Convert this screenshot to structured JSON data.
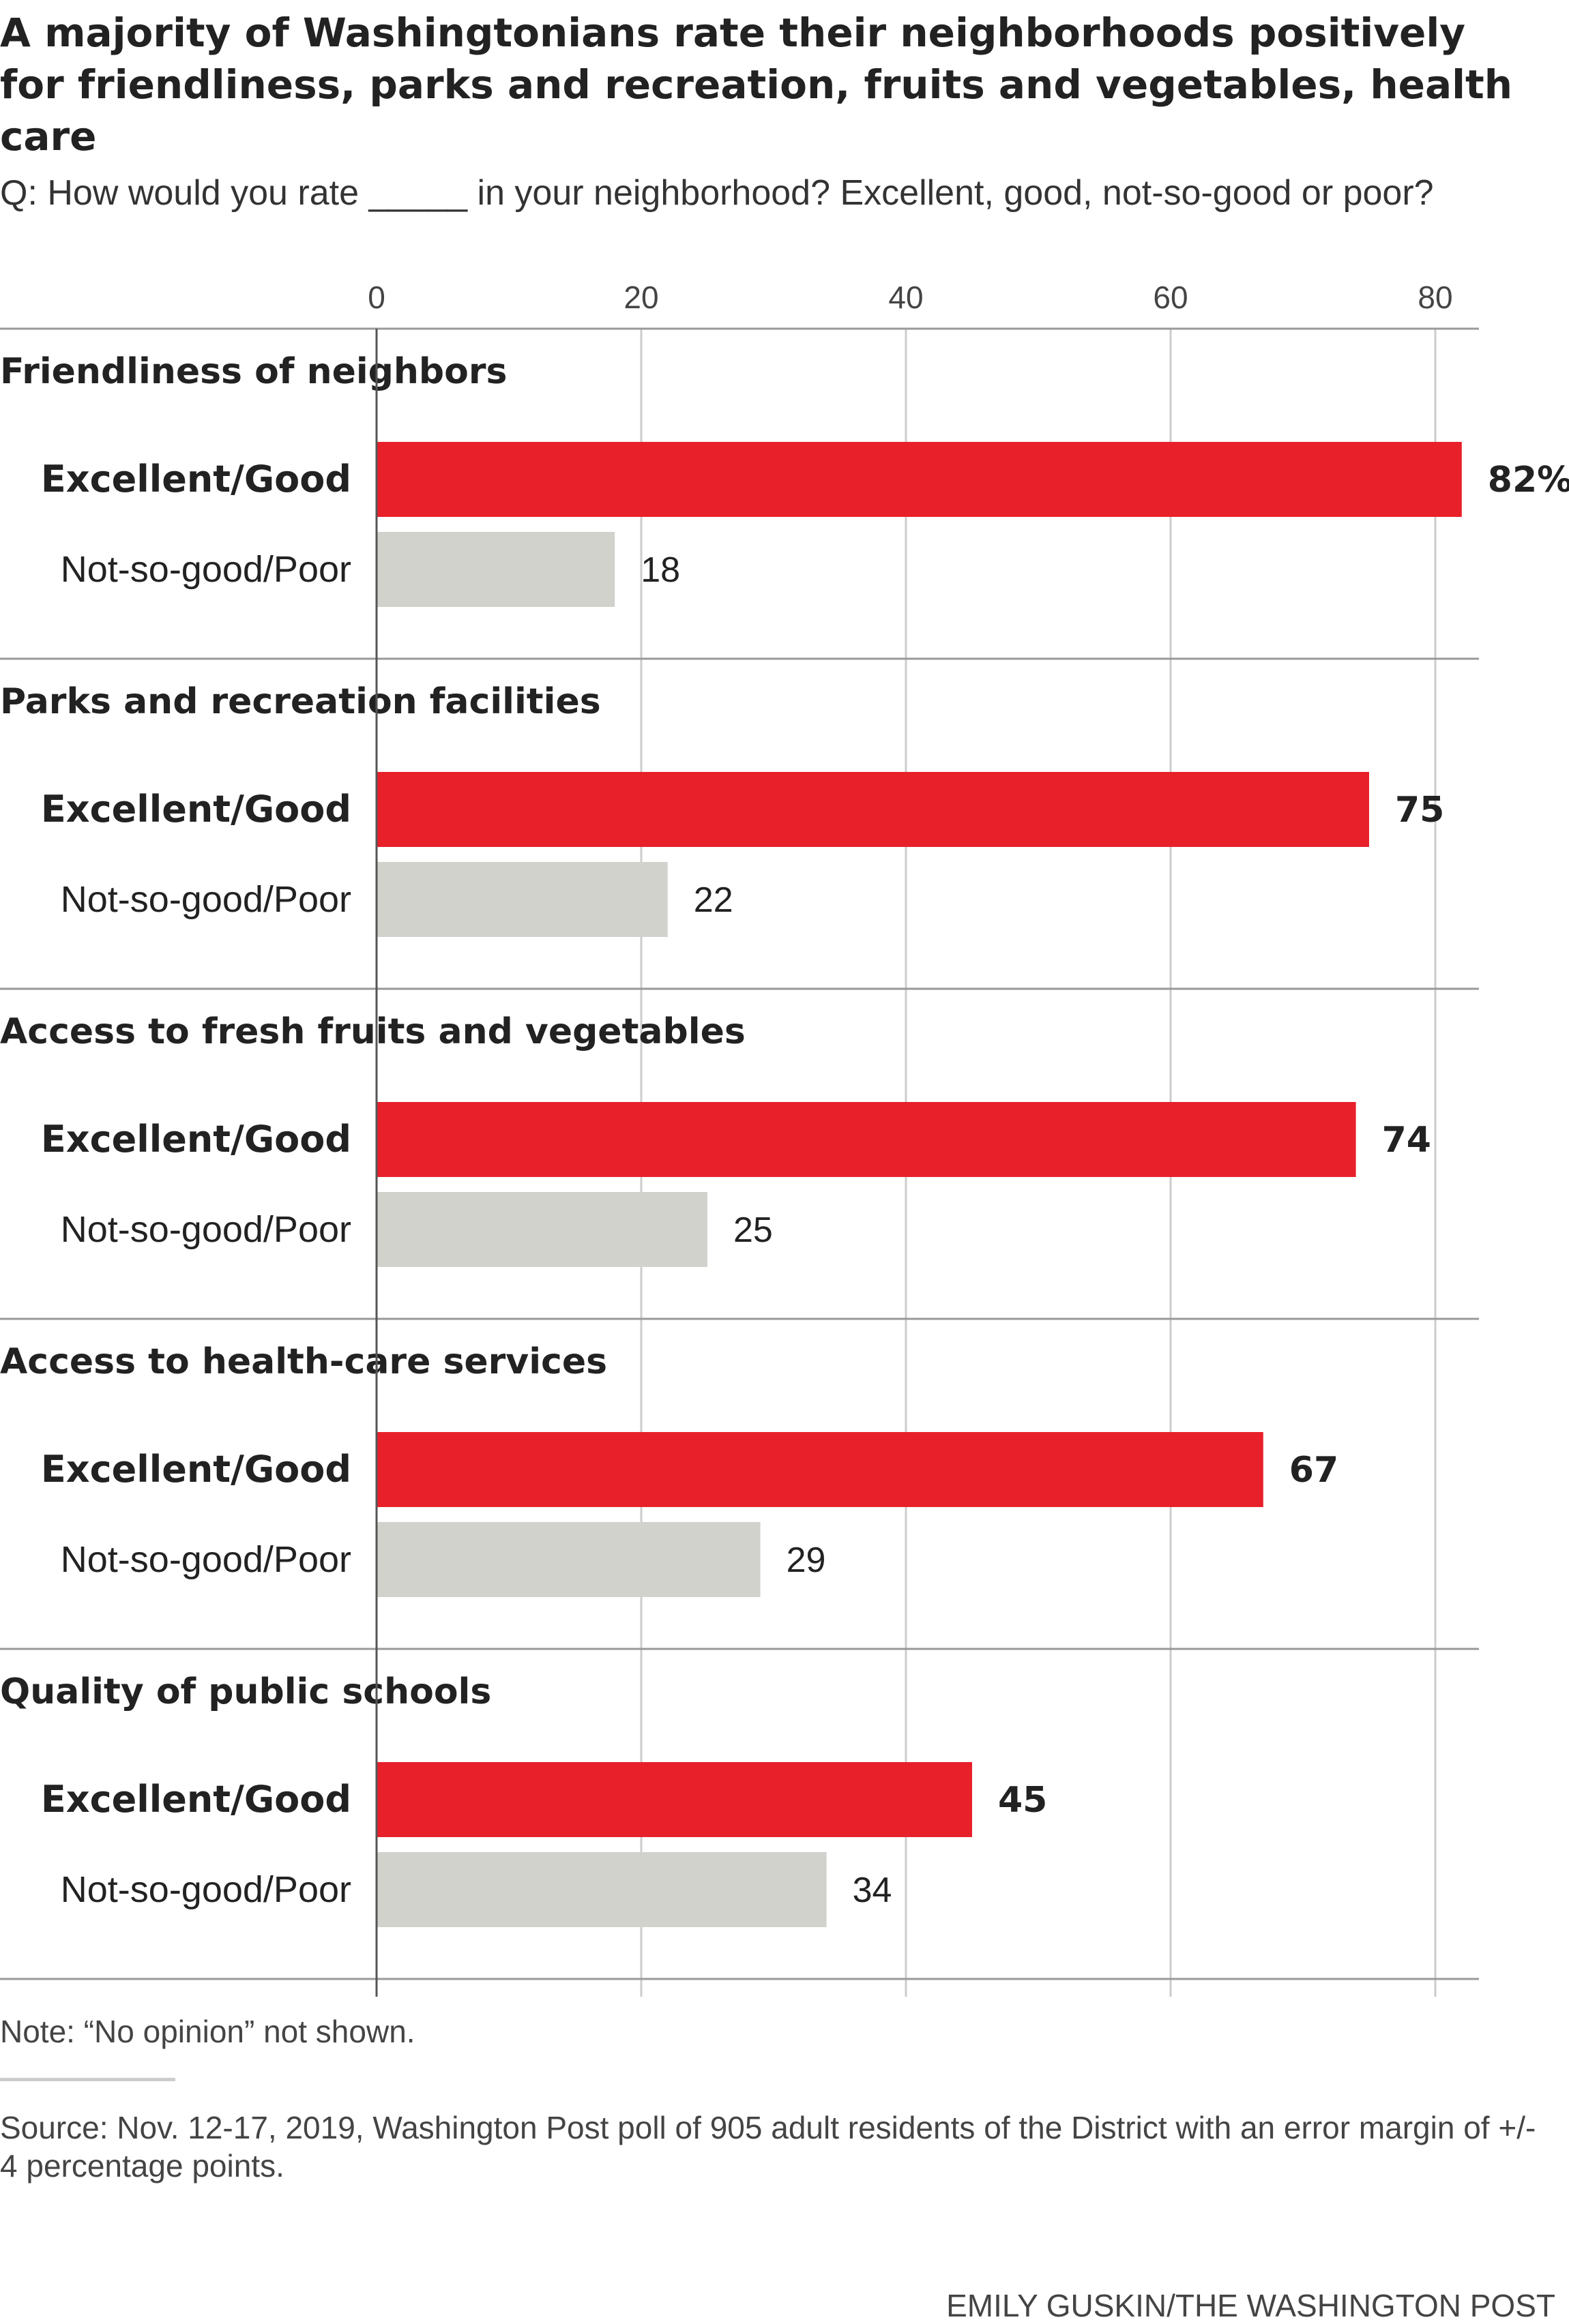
{
  "chart_data": {
    "type": "bar",
    "orientation": "horizontal",
    "title": "A majority of Washingtonians rate their neighborhoods positively for friendliness, parks and recreation, fruits and vegetables, health care",
    "subtitle": "Q: How would you rate _____ in your neighborhood? Excellent, good, not-so-good or poor?",
    "xlim": [
      0,
      83
    ],
    "x_ticks": [
      0,
      20,
      40,
      60,
      80
    ],
    "x_tick_labels": [
      "0",
      "20",
      "40",
      "60",
      "80"
    ],
    "grid": true,
    "categories": [
      "Friendliness of neighbors",
      "Parks and recreation facilities",
      "Access to fresh fruits and vegetables",
      "Access to health-care services",
      "Quality of public schools"
    ],
    "series": [
      {
        "name": "Excellent/Good",
        "color": "#e8202a",
        "values": [
          82,
          75,
          74,
          67,
          45
        ],
        "value_labels": [
          "82%",
          "75",
          "74",
          "67",
          "45"
        ]
      },
      {
        "name": "Not-so-good/Poor",
        "color": "#d2d2cd",
        "values": [
          18,
          22,
          25,
          29,
          34
        ],
        "value_labels": [
          "18",
          "22",
          "25",
          "29",
          "34"
        ]
      }
    ]
  },
  "footer": {
    "note": "Note: “No opinion” not shown.",
    "source": "Source: Nov. 12-17, 2019, Washington Post poll of 905 adult residents of the District with an error margin of +/- 4 percentage points.",
    "credit": "EMILY GUSKIN/THE WASHINGTON POST"
  },
  "colors": {
    "text": "#222222",
    "gridline": "#cccccc",
    "divider": "#999999",
    "axis": "#555555"
  }
}
